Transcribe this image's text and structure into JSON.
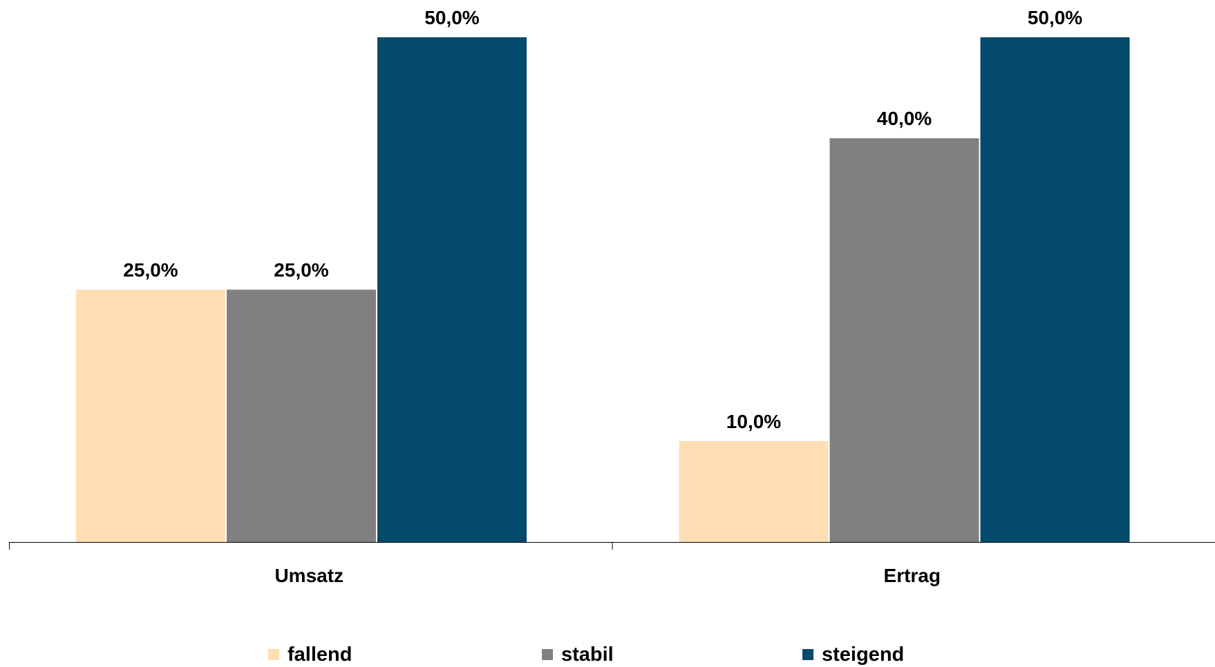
{
  "chart_data": {
    "type": "bar",
    "categories": [
      "Umsatz",
      "Ertrag"
    ],
    "series": [
      {
        "name": "fallend",
        "values": [
          25.0,
          10.0
        ],
        "labels": [
          "25,0%",
          "10,0%"
        ],
        "color": "#FFDEB3"
      },
      {
        "name": "stabil",
        "values": [
          25.0,
          40.0
        ],
        "labels": [
          "25,0%",
          "40,0%"
        ],
        "color": "#808080"
      },
      {
        "name": "steigend",
        "values": [
          50.0,
          50.0
        ],
        "labels": [
          "50,0%",
          "50,0%"
        ],
        "color": "#044A6C"
      }
    ],
    "ylim": [
      0,
      50
    ],
    "grid": false,
    "legend": "bottom",
    "title": "",
    "xlabel": "",
    "ylabel": ""
  }
}
